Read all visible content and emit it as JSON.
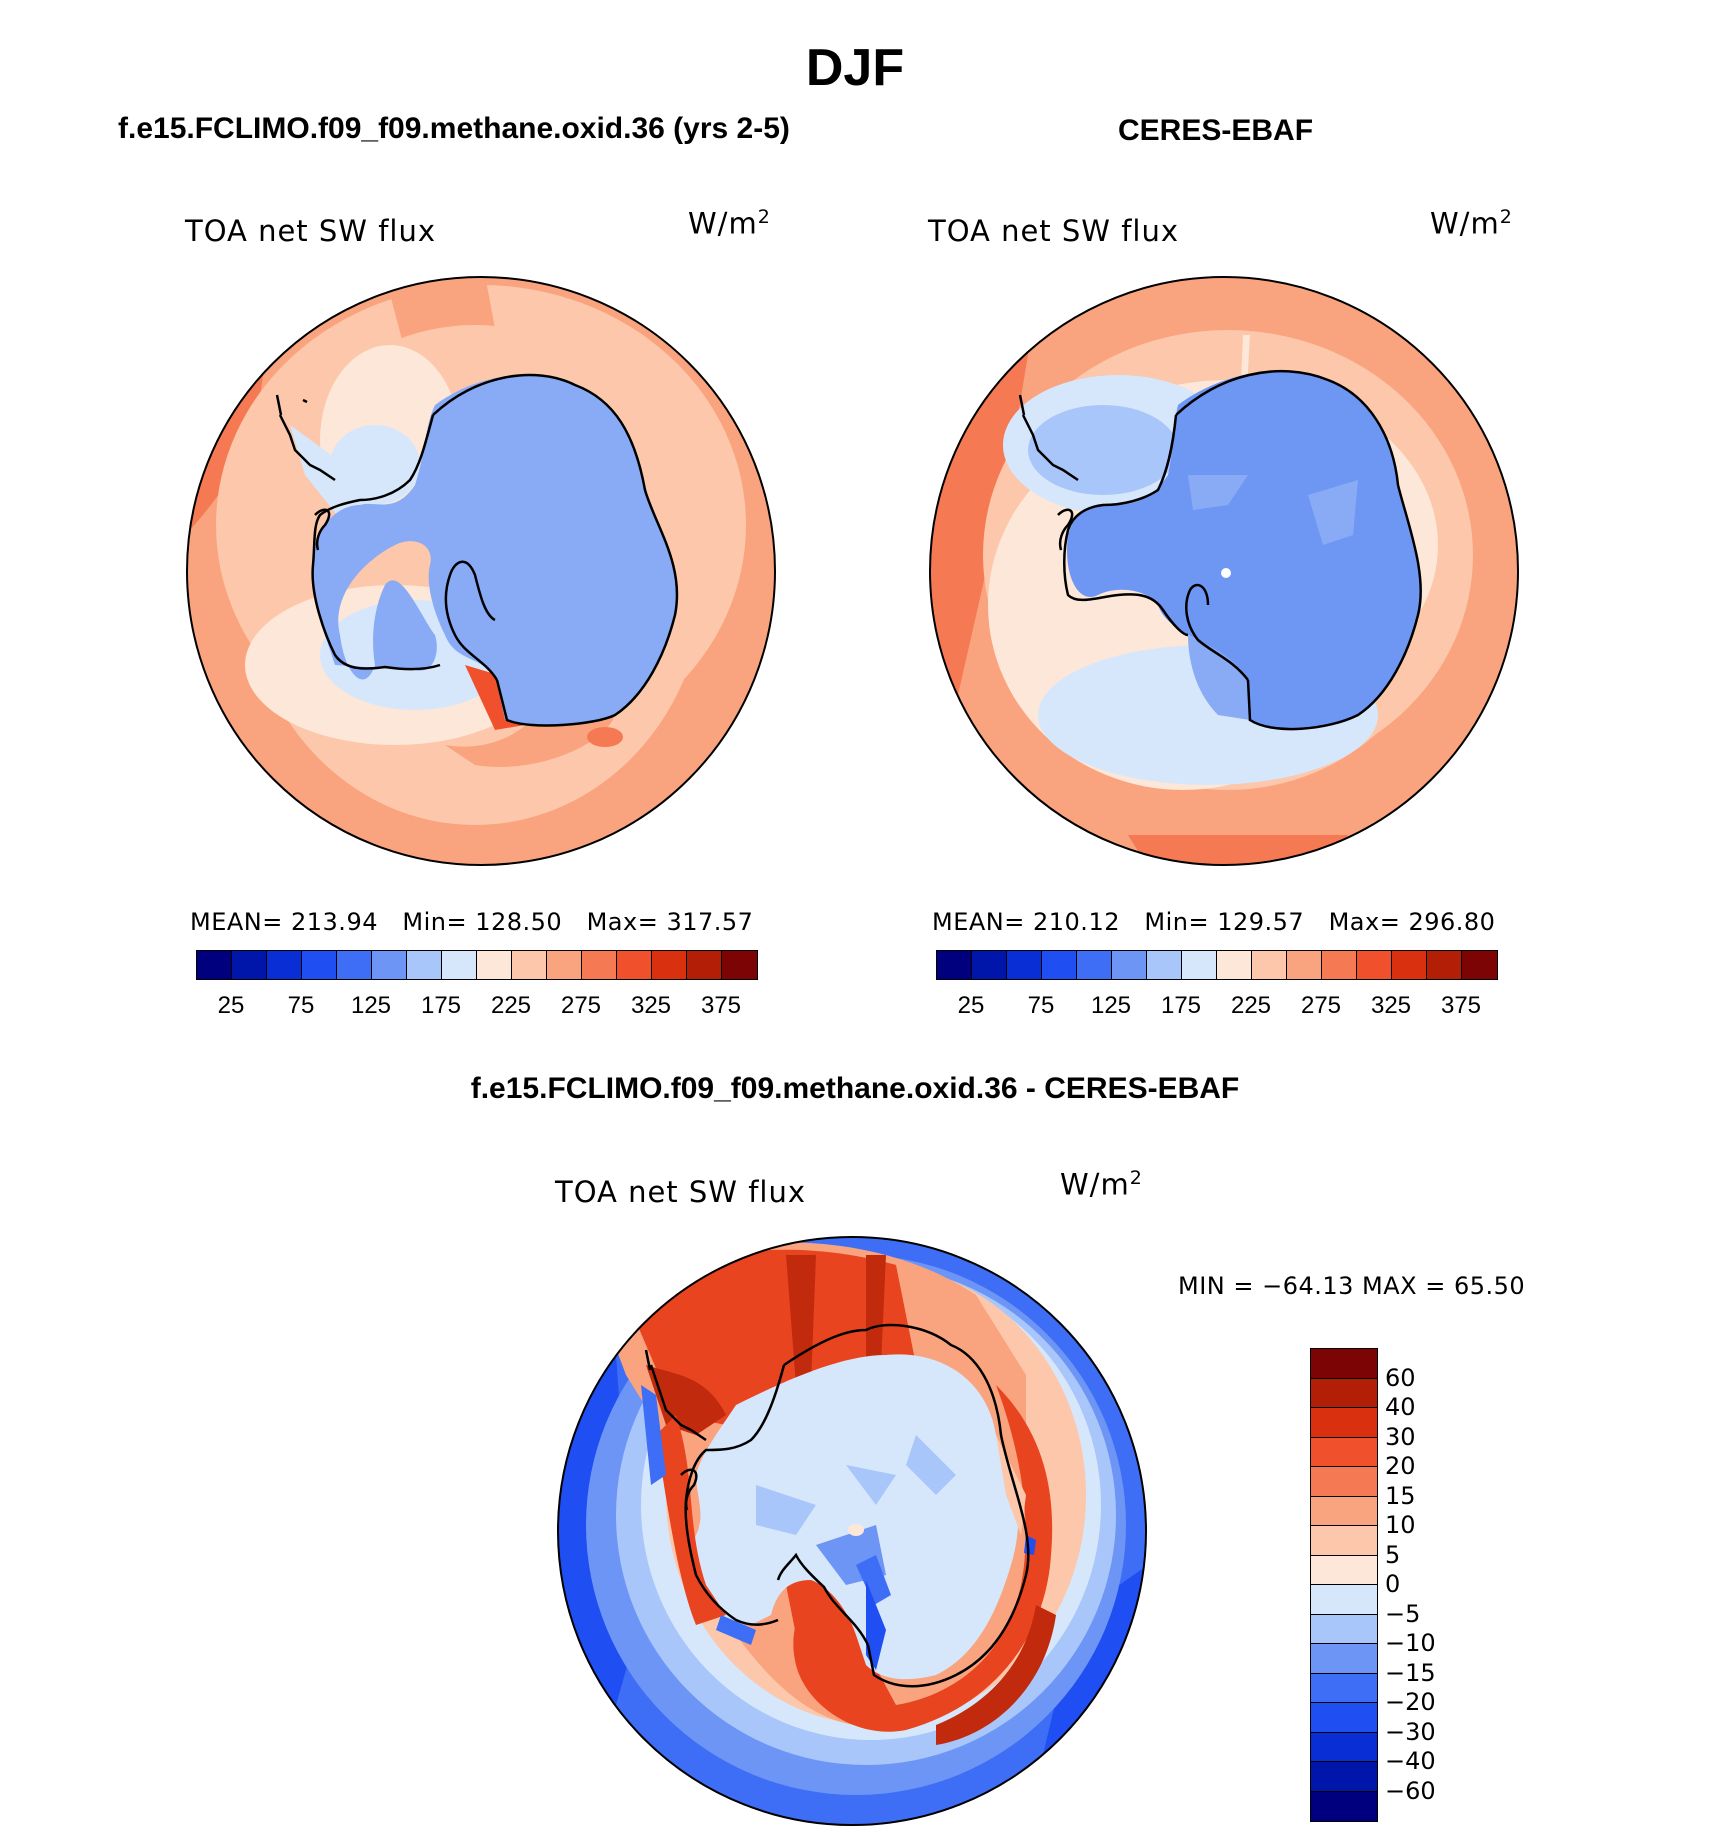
{
  "header": {
    "title": "DJF",
    "left_panel_title": "f.e15.FCLIMO.f09_f09.methane.oxid.36 (yrs 2-5)",
    "right_panel_title": "CERES-EBAF",
    "diff_panel_title": "f.e15.FCLIMO.f09_f09.methane.oxid.36 - CERES-EBAF"
  },
  "panels": {
    "model": {
      "variable": "TOA net SW flux",
      "units_base": "W/m",
      "units_exp": "2",
      "mean_label": "MEAN=",
      "mean": "213.94",
      "min_label": "Min=",
      "min": "128.50",
      "max_label": "Max=",
      "max": "317.57"
    },
    "obs": {
      "variable": "TOA net SW flux",
      "units_base": "W/m",
      "units_exp": "2",
      "mean_label": "MEAN=",
      "mean": "210.12",
      "min_label": "Min=",
      "min": "129.57",
      "max_label": "Max=",
      "max": "296.80"
    },
    "diff": {
      "variable": "TOA net SW flux",
      "units_base": "W/m",
      "units_exp": "2",
      "minmax_text": "MIN = −64.13 MAX =   65.50"
    }
  },
  "colorbar_main": {
    "colors": [
      "#00007f",
      "#0015aa",
      "#0a2ed6",
      "#1f4ff2",
      "#3d6ef5",
      "#6d95f5",
      "#a9c6fa",
      "#d6e7fb",
      "#fde7d8",
      "#fcc7aa",
      "#f9a47e",
      "#f57a53",
      "#f1502c",
      "#d9310f",
      "#b31e06",
      "#7c0404"
    ],
    "tick_labels": [
      "25",
      "75",
      "125",
      "175",
      "225",
      "275",
      "325",
      "375"
    ]
  },
  "colorbar_diff": {
    "colors": [
      "#7c0404",
      "#b31e06",
      "#d9310f",
      "#f1502c",
      "#f57a53",
      "#f9a47e",
      "#fcc7aa",
      "#fde7d8",
      "#d6e7fb",
      "#a9c6fa",
      "#6d95f5",
      "#3d6ef5",
      "#1f4ff2",
      "#0a2ed6",
      "#0015aa",
      "#00007f"
    ],
    "tick_labels": [
      "60",
      "40",
      "30",
      "20",
      "15",
      "10",
      "5",
      "0",
      "−5",
      "−10",
      "−15",
      "−20",
      "−30",
      "−40",
      "−60"
    ]
  },
  "map_colors": {
    "ice_model": "#89abf6",
    "ice_obs": "#6e96f3",
    "ring_light_blue": "#d6e7fb",
    "ring_mid_blue": "#a9c6fa",
    "ring_peach": "#fde7d8",
    "ring_salmon": "#fcc7aa",
    "ring_orange": "#f9a47e",
    "ring_red": "#f57a53",
    "diff_red": "#e8441f",
    "diff_dark_red": "#c22a0d",
    "diff_blue": "#3d6ef5",
    "diff_dark_blue": "#1f4ff2"
  }
}
